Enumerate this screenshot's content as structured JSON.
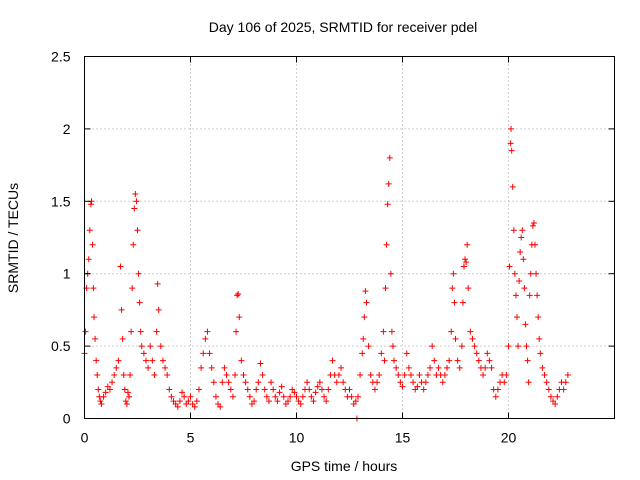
{
  "chart_data": {
    "type": "scatter",
    "title": "Day 106 of 2025, SRMTID for receiver pdel",
    "xlabel": "GPS time / hours",
    "ylabel": "SRMTID / TECUs",
    "xlim": [
      0,
      25
    ],
    "ylim": [
      0,
      2.5
    ],
    "xticks": [
      0,
      5,
      10,
      15,
      20
    ],
    "xtick_labels": [
      "0",
      "5",
      "10",
      "15",
      "20"
    ],
    "yticks": [
      0,
      0.5,
      1,
      1.5,
      2,
      2.5
    ],
    "ytick_labels": [
      "0",
      "0.5",
      "1",
      "1.5",
      "2",
      "2.5"
    ],
    "grid": true,
    "marker": "+",
    "color": "#ff0000",
    "series": [
      {
        "name": "SRMTID",
        "points": [
          [
            0.0,
            0.45
          ],
          [
            0.05,
            0.6
          ],
          [
            0.1,
            0.9
          ],
          [
            0.15,
            1.0
          ],
          [
            0.2,
            1.1
          ],
          [
            0.25,
            1.3
          ],
          [
            0.3,
            1.48
          ],
          [
            0.33,
            1.5
          ],
          [
            0.38,
            1.2
          ],
          [
            0.42,
            0.9
          ],
          [
            0.45,
            0.7
          ],
          [
            0.5,
            0.55
          ],
          [
            0.55,
            0.4
          ],
          [
            0.6,
            0.3
          ],
          [
            0.65,
            0.2
          ],
          [
            0.7,
            0.15
          ],
          [
            0.75,
            0.12
          ],
          [
            0.8,
            0.1
          ],
          [
            0.9,
            0.15
          ],
          [
            1.0,
            0.18
          ],
          [
            1.1,
            0.22
          ],
          [
            1.2,
            0.2
          ],
          [
            1.3,
            0.25
          ],
          [
            1.4,
            0.3
          ],
          [
            1.5,
            0.35
          ],
          [
            1.6,
            0.4
          ],
          [
            1.7,
            1.05
          ],
          [
            1.75,
            0.75
          ],
          [
            1.8,
            0.55
          ],
          [
            1.85,
            0.3
          ],
          [
            1.9,
            0.2
          ],
          [
            1.95,
            0.12
          ],
          [
            2.0,
            0.1
          ],
          [
            2.05,
            0.18
          ],
          [
            2.1,
            0.15
          ],
          [
            2.15,
            0.3
          ],
          [
            2.2,
            0.6
          ],
          [
            2.25,
            0.9
          ],
          [
            2.3,
            1.2
          ],
          [
            2.35,
            1.45
          ],
          [
            2.4,
            1.55
          ],
          [
            2.45,
            1.5
          ],
          [
            2.5,
            1.3
          ],
          [
            2.55,
            1.0
          ],
          [
            2.6,
            0.8
          ],
          [
            2.65,
            0.6
          ],
          [
            2.7,
            0.5
          ],
          [
            2.8,
            0.45
          ],
          [
            2.9,
            0.4
          ],
          [
            3.0,
            0.35
          ],
          [
            3.1,
            0.5
          ],
          [
            3.2,
            0.4
          ],
          [
            3.3,
            0.3
          ],
          [
            3.4,
            0.6
          ],
          [
            3.45,
            0.93
          ],
          [
            3.5,
            0.75
          ],
          [
            3.6,
            0.5
          ],
          [
            3.7,
            0.4
          ],
          [
            3.8,
            0.35
          ],
          [
            3.9,
            0.3
          ],
          [
            4.0,
            0.2
          ],
          [
            4.1,
            0.15
          ],
          [
            4.2,
            0.12
          ],
          [
            4.3,
            0.1
          ],
          [
            4.4,
            0.08
          ],
          [
            4.5,
            0.12
          ],
          [
            4.6,
            0.18
          ],
          [
            4.7,
            0.15
          ],
          [
            4.8,
            0.1
          ],
          [
            4.9,
            0.12
          ],
          [
            5.0,
            0.15
          ],
          [
            5.1,
            0.1
          ],
          [
            5.2,
            0.08
          ],
          [
            5.3,
            0.12
          ],
          [
            5.4,
            0.2
          ],
          [
            5.5,
            0.35
          ],
          [
            5.6,
            0.45
          ],
          [
            5.7,
            0.55
          ],
          [
            5.8,
            0.6
          ],
          [
            5.9,
            0.45
          ],
          [
            6.0,
            0.35
          ],
          [
            6.1,
            0.25
          ],
          [
            6.2,
            0.15
          ],
          [
            6.3,
            0.1
          ],
          [
            6.4,
            0.08
          ],
          [
            6.5,
            0.25
          ],
          [
            6.6,
            0.35
          ],
          [
            6.7,
            0.3
          ],
          [
            6.8,
            0.25
          ],
          [
            6.9,
            0.2
          ],
          [
            7.0,
            0.15
          ],
          [
            7.1,
            0.3
          ],
          [
            7.15,
            0.6
          ],
          [
            7.2,
            0.85
          ],
          [
            7.25,
            0.86
          ],
          [
            7.3,
            0.7
          ],
          [
            7.4,
            0.4
          ],
          [
            7.5,
            0.3
          ],
          [
            7.6,
            0.25
          ],
          [
            7.7,
            0.2
          ],
          [
            7.8,
            0.15
          ],
          [
            7.9,
            0.1
          ],
          [
            8.0,
            0.12
          ],
          [
            8.1,
            0.2
          ],
          [
            8.2,
            0.25
          ],
          [
            8.3,
            0.38
          ],
          [
            8.4,
            0.3
          ],
          [
            8.5,
            0.2
          ],
          [
            8.6,
            0.15
          ],
          [
            8.7,
            0.12
          ],
          [
            8.8,
            0.25
          ],
          [
            8.9,
            0.2
          ],
          [
            9.0,
            0.15
          ],
          [
            9.1,
            0.12
          ],
          [
            9.2,
            0.18
          ],
          [
            9.3,
            0.22
          ],
          [
            9.4,
            0.15
          ],
          [
            9.5,
            0.1
          ],
          [
            9.6,
            0.12
          ],
          [
            9.7,
            0.15
          ],
          [
            9.8,
            0.2
          ],
          [
            9.9,
            0.18
          ],
          [
            10.0,
            0.15
          ],
          [
            10.1,
            0.12
          ],
          [
            10.2,
            0.1
          ],
          [
            10.3,
            0.15
          ],
          [
            10.4,
            0.2
          ],
          [
            10.5,
            0.25
          ],
          [
            10.6,
            0.2
          ],
          [
            10.7,
            0.15
          ],
          [
            10.8,
            0.12
          ],
          [
            10.9,
            0.18
          ],
          [
            11.0,
            0.22
          ],
          [
            11.1,
            0.25
          ],
          [
            11.2,
            0.2
          ],
          [
            11.3,
            0.15
          ],
          [
            11.4,
            0.12
          ],
          [
            11.5,
            0.2
          ],
          [
            11.6,
            0.3
          ],
          [
            11.7,
            0.4
          ],
          [
            11.8,
            0.3
          ],
          [
            11.9,
            0.25
          ],
          [
            12.0,
            0.3
          ],
          [
            12.1,
            0.35
          ],
          [
            12.2,
            0.25
          ],
          [
            12.3,
            0.2
          ],
          [
            12.4,
            0.15
          ],
          [
            12.5,
            0.2
          ],
          [
            12.6,
            0.15
          ],
          [
            12.7,
            0.1
          ],
          [
            12.8,
            0.12
          ],
          [
            12.85,
            0.0
          ],
          [
            12.9,
            0.15
          ],
          [
            13.0,
            0.3
          ],
          [
            13.1,
            0.45
          ],
          [
            13.15,
            0.55
          ],
          [
            13.2,
            0.7
          ],
          [
            13.25,
            0.88
          ],
          [
            13.3,
            0.8
          ],
          [
            13.4,
            0.5
          ],
          [
            13.5,
            0.3
          ],
          [
            13.6,
            0.25
          ],
          [
            13.7,
            0.2
          ],
          [
            13.8,
            0.25
          ],
          [
            13.9,
            0.3
          ],
          [
            14.0,
            0.45
          ],
          [
            14.1,
            0.6
          ],
          [
            14.15,
            0.4
          ],
          [
            14.2,
            0.9
          ],
          [
            14.25,
            1.2
          ],
          [
            14.3,
            1.48
          ],
          [
            14.35,
            1.62
          ],
          [
            14.4,
            1.8
          ],
          [
            14.45,
            1.0
          ],
          [
            14.5,
            0.6
          ],
          [
            14.55,
            0.5
          ],
          [
            14.6,
            0.4
          ],
          [
            14.7,
            0.35
          ],
          [
            14.8,
            0.3
          ],
          [
            14.9,
            0.25
          ],
          [
            15.0,
            0.22
          ],
          [
            15.1,
            0.3
          ],
          [
            15.2,
            0.45
          ],
          [
            15.3,
            0.35
          ],
          [
            15.4,
            0.3
          ],
          [
            15.5,
            0.25
          ],
          [
            15.6,
            0.2
          ],
          [
            15.7,
            0.22
          ],
          [
            15.8,
            0.3
          ],
          [
            15.9,
            0.25
          ],
          [
            16.0,
            0.2
          ],
          [
            16.1,
            0.25
          ],
          [
            16.2,
            0.3
          ],
          [
            16.3,
            0.35
          ],
          [
            16.4,
            0.5
          ],
          [
            16.5,
            0.4
          ],
          [
            16.6,
            0.3
          ],
          [
            16.7,
            0.35
          ],
          [
            16.8,
            0.3
          ],
          [
            16.9,
            0.25
          ],
          [
            17.0,
            0.3
          ],
          [
            17.1,
            0.35
          ],
          [
            17.2,
            0.4
          ],
          [
            17.3,
            0.6
          ],
          [
            17.35,
            0.9
          ],
          [
            17.4,
            1.0
          ],
          [
            17.45,
            0.8
          ],
          [
            17.5,
            0.55
          ],
          [
            17.6,
            0.4
          ],
          [
            17.7,
            0.35
          ],
          [
            17.8,
            0.5
          ],
          [
            17.85,
            0.8
          ],
          [
            17.9,
            1.05
          ],
          [
            17.95,
            1.1
          ],
          [
            18.0,
            1.08
          ],
          [
            18.05,
            1.2
          ],
          [
            18.1,
            0.9
          ],
          [
            18.2,
            0.6
          ],
          [
            18.3,
            0.55
          ],
          [
            18.4,
            0.5
          ],
          [
            18.5,
            0.45
          ],
          [
            18.6,
            0.4
          ],
          [
            18.7,
            0.35
          ],
          [
            18.8,
            0.3
          ],
          [
            18.9,
            0.35
          ],
          [
            19.0,
            0.45
          ],
          [
            19.1,
            0.4
          ],
          [
            19.2,
            0.35
          ],
          [
            19.3,
            0.2
          ],
          [
            19.4,
            0.15
          ],
          [
            19.5,
            0.2
          ],
          [
            19.6,
            0.25
          ],
          [
            19.7,
            0.3
          ],
          [
            19.8,
            0.25
          ],
          [
            19.9,
            0.3
          ],
          [
            20.0,
            0.5
          ],
          [
            20.05,
            1.05
          ],
          [
            20.1,
            1.9
          ],
          [
            20.12,
            2.0
          ],
          [
            20.15,
            1.85
          ],
          [
            20.2,
            1.6
          ],
          [
            20.25,
            1.3
          ],
          [
            20.3,
            1.0
          ],
          [
            20.35,
            0.85
          ],
          [
            20.4,
            0.7
          ],
          [
            20.45,
            0.5
          ],
          [
            20.5,
            0.95
          ],
          [
            20.55,
            1.15
          ],
          [
            20.6,
            1.25
          ],
          [
            20.65,
            1.3
          ],
          [
            20.7,
            1.1
          ],
          [
            20.75,
            0.9
          ],
          [
            20.8,
            0.65
          ],
          [
            20.85,
            0.5
          ],
          [
            20.9,
            0.4
          ],
          [
            20.95,
            0.25
          ],
          [
            21.0,
            0.85
          ],
          [
            21.05,
            1.0
          ],
          [
            21.1,
            1.2
          ],
          [
            21.15,
            1.33
          ],
          [
            21.2,
            1.35
          ],
          [
            21.25,
            1.2
          ],
          [
            21.3,
            1.0
          ],
          [
            21.35,
            0.85
          ],
          [
            21.4,
            0.7
          ],
          [
            21.45,
            0.55
          ],
          [
            21.5,
            0.45
          ],
          [
            21.6,
            0.35
          ],
          [
            21.7,
            0.3
          ],
          [
            21.8,
            0.25
          ],
          [
            21.9,
            0.2
          ],
          [
            22.0,
            0.15
          ],
          [
            22.1,
            0.12
          ],
          [
            22.2,
            0.1
          ],
          [
            22.3,
            0.15
          ],
          [
            22.4,
            0.2
          ],
          [
            22.5,
            0.25
          ],
          [
            22.6,
            0.2
          ],
          [
            22.7,
            0.25
          ],
          [
            22.8,
            0.3
          ]
        ]
      }
    ]
  }
}
